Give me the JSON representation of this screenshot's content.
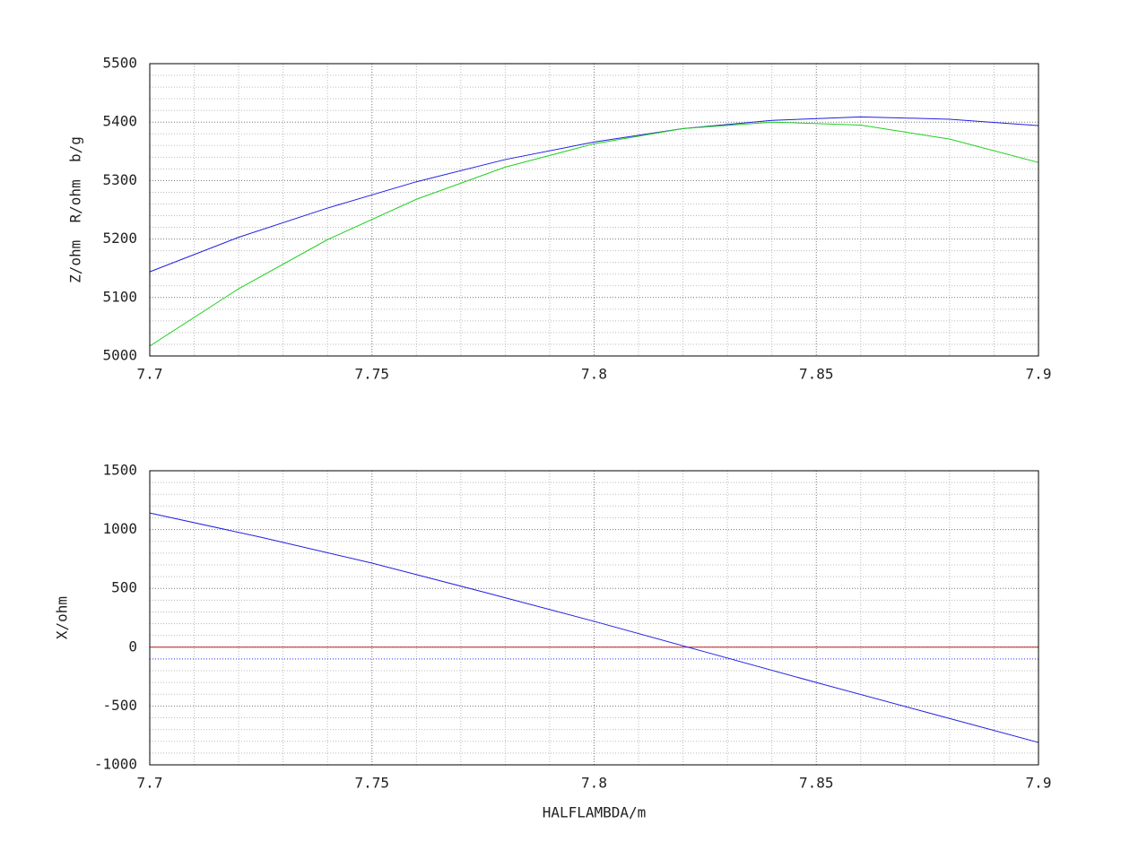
{
  "chart_data": [
    {
      "type": "line",
      "ylabel": "Z/ohm  R/ohm  b/g",
      "x": [
        7.7,
        7.72,
        7.74,
        7.76,
        7.78,
        7.8,
        7.82,
        7.84,
        7.86,
        7.88,
        7.9
      ],
      "series": [
        {
          "color": "#2020e0",
          "values": [
            5144,
            5203,
            5253,
            5298,
            5336,
            5366,
            5389,
            5403,
            5409,
            5405,
            5394
          ]
        },
        {
          "color": "#20d020",
          "values": [
            5017,
            5115,
            5199,
            5268,
            5323,
            5363,
            5389,
            5400,
            5395,
            5371,
            5331
          ]
        }
      ],
      "xlim": [
        7.7,
        7.9
      ],
      "xticks": [
        7.7,
        7.75,
        7.8,
        7.85,
        7.9
      ],
      "minor_xticks": [
        7.71,
        7.72,
        7.73,
        7.74,
        7.76,
        7.77,
        7.78,
        7.79,
        7.81,
        7.82,
        7.83,
        7.84,
        7.86,
        7.87,
        7.88,
        7.89
      ],
      "ylim": [
        5000,
        5500
      ],
      "yticks": [
        5000,
        5100,
        5200,
        5300,
        5400,
        5500
      ],
      "minor_yticks": [
        5020,
        5040,
        5060,
        5080,
        5120,
        5140,
        5160,
        5180,
        5220,
        5240,
        5260,
        5280,
        5320,
        5340,
        5360,
        5380,
        5420,
        5440,
        5460,
        5480
      ],
      "grid": true
    },
    {
      "type": "line",
      "ylabel": "X/ohm",
      "xlabel": "HALFLAMBDA/m",
      "x": [
        7.7,
        7.725,
        7.75,
        7.775,
        7.8,
        7.825,
        7.85,
        7.875,
        7.9
      ],
      "series": [
        {
          "color": "#2020e0",
          "values": [
            1141,
            935,
            715,
            470,
            220,
            -40,
            -300,
            -555,
            -810
          ]
        }
      ],
      "hlines": [
        {
          "value": 0,
          "color": "#c02020"
        },
        {
          "value": -100,
          "color": "#4040ff",
          "style": "dotted"
        }
      ],
      "xlim": [
        7.7,
        7.9
      ],
      "xticks": [
        7.7,
        7.75,
        7.8,
        7.85,
        7.9
      ],
      "minor_xticks": [
        7.71,
        7.72,
        7.73,
        7.74,
        7.76,
        7.77,
        7.78,
        7.79,
        7.81,
        7.82,
        7.83,
        7.84,
        7.86,
        7.87,
        7.88,
        7.89
      ],
      "ylim": [
        -1000,
        1500
      ],
      "yticks": [
        -1000,
        -500,
        0,
        500,
        1000,
        1500
      ],
      "minor_yticks": [
        -900,
        -800,
        -700,
        -600,
        -400,
        -300,
        -200,
        -100,
        100,
        200,
        300,
        400,
        600,
        700,
        800,
        900,
        1100,
        1200,
        1300,
        1400
      ],
      "grid": true
    }
  ]
}
